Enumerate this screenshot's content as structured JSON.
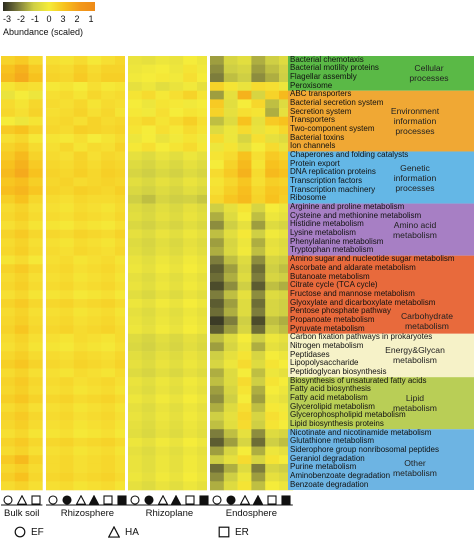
{
  "legend": {
    "ticks": [
      "-3",
      "-2",
      "-1",
      "0",
      "3",
      "2",
      "1"
    ],
    "title": "Abundance (scaled)",
    "colors": [
      "#2b2b20",
      "#7d7d3c",
      "#cfcf44",
      "#f5ec3a",
      "#f7c21e",
      "#f39a1a",
      "#ee8a18"
    ]
  },
  "row_labels": [
    "Bacterial chemotaxis",
    "Bacterial motility proteins",
    "Flagellar assembly",
    "Peroxisome",
    "ABC transporters",
    "Bacterial secretion system",
    "Secretion system",
    "Transporters",
    "Two-component system",
    "Bacterial toxins",
    "Ion channels",
    "Chaperones and folding catalysts",
    "Protein export",
    "DNA replication proteins",
    "Transcription factors",
    "Transcription machinery",
    "Ribosome",
    "Arginine and proline metabolism",
    "Cysteine and methionine metabolism",
    "Histidine metabolism",
    "Lysine metabolism",
    "Phenylalanine metabolism",
    "Tryptophan metabolism",
    "Amino sugar and nucleotide sugar metabolism",
    "Ascorbate and aldarate metabolism",
    "Butanoate metabolism",
    "Citrate cycle (TCA cycle)",
    "Fructose and mannose metabolism",
    "Glyoxylate and dicarboxylate metabolism",
    "Pentose phosphate pathway",
    "Propanoate metabolism",
    "Pyruvate metabolism",
    "Carbon fixation pathways in prokaryotes",
    "Nitrogen metabolism",
    "Peptidases",
    "Lipopolysaccharide",
    "Peptidoglycan biosynthesis",
    "Biosynthesis of unsaturated fatty acids",
    "Fatty acid biosynthesis",
    "Fatty acid metabolism",
    "Glycerolipid metabolism",
    "Glycerophospholipid metabolism",
    "Lipid biosynthesis proteins",
    "Nicotinate and nicotinamide metabolism",
    "Glutathione metabolism",
    "Siderophore group nonribosomal peptides",
    "Geraniol degradation",
    "Purine metabolism",
    "Aminobenzoate degradation",
    "Benzoate degradation"
  ],
  "categories": [
    {
      "lines": [
        "Cellular",
        "processes"
      ],
      "start": 0,
      "end": 4,
      "color": "#5ab946"
    },
    {
      "lines": [
        "Environment",
        "information",
        "processes"
      ],
      "start": 4,
      "end": 11,
      "color": "#f0a834"
    },
    {
      "lines": [
        "Genetic",
        "information",
        "processes"
      ],
      "start": 11,
      "end": 17,
      "color": "#64b7e6"
    },
    {
      "lines": [
        "Amino acid",
        "metabolism"
      ],
      "start": 17,
      "end": 23,
      "color": "#a77fc4"
    },
    {
      "lines": [
        "Carbohydrate",
        "metabolism"
      ],
      "start": 23,
      "end": 32,
      "color": "#e86a3c"
    },
    {
      "lines": [
        "Energy&Glycan",
        "metabolism"
      ],
      "start": 32,
      "end": 37,
      "color": "#f6f2c8"
    },
    {
      "lines": [
        "Lipid",
        "metabolism"
      ],
      "start": 37,
      "end": 43,
      "color": "#b9ce56"
    },
    {
      "lines": [
        "Other",
        "metabolism"
      ],
      "start": 43,
      "end": 50,
      "color": "#6db4e3"
    }
  ],
  "groups": [
    {
      "name": "Bulk soil",
      "symbols": [
        "circle-open",
        "triangle-open",
        "square-open"
      ]
    },
    {
      "name": "Rhizosphere",
      "symbols": [
        "circle-open",
        "circle-filled",
        "triangle-open",
        "triangle-filled",
        "square-open",
        "square-filled"
      ]
    },
    {
      "name": "Rhizoplane",
      "symbols": [
        "circle-open",
        "circle-filled",
        "triangle-open",
        "triangle-filled",
        "square-open",
        "square-filled"
      ]
    },
    {
      "name": "Endosphere",
      "symbols": [
        "circle-open",
        "circle-filled",
        "triangle-open",
        "triangle-filled",
        "square-open",
        "square-filled"
      ]
    }
  ],
  "key": [
    {
      "symbol": "circle-open",
      "label": "EF"
    },
    {
      "symbol": "triangle-open",
      "label": "HA"
    },
    {
      "symbol": "square-open",
      "label": "ER"
    }
  ],
  "chart_data": {
    "type": "heatmap",
    "title": "",
    "legend_title": "Abundance (scaled)",
    "columns_per_group": [
      3,
      6,
      6,
      6
    ],
    "column_groups": [
      "Bulk soil",
      "Rhizosphere",
      "Rhizoplane",
      "Endosphere"
    ],
    "column_key": {
      "circle": "EF",
      "triangle": "HA",
      "square": "ER"
    },
    "rows": [
      [
        0.6,
        0.8,
        0.4,
        0.3,
        0.2,
        0.4,
        0.1,
        0.3,
        0.5,
        -0.3,
        -0.4,
        -0.2,
        -0.3,
        0.0,
        -0.2,
        -1.6,
        -0.8,
        -0.5,
        -1.4,
        -1.0,
        -0.6
      ],
      [
        1.0,
        1.4,
        0.8,
        0.5,
        0.4,
        0.7,
        0.4,
        0.6,
        0.6,
        -0.2,
        -0.1,
        0.0,
        -0.2,
        0.2,
        -0.1,
        -1.8,
        -1.0,
        -0.8,
        -1.6,
        -1.2,
        -0.9
      ],
      [
        1.2,
        1.6,
        1.0,
        0.6,
        0.5,
        0.8,
        0.5,
        0.7,
        0.7,
        -0.1,
        0.0,
        0.1,
        -0.1,
        0.3,
        0.0,
        -2.0,
        -1.2,
        -1.0,
        -1.8,
        -1.4,
        -1.0
      ],
      [
        0.2,
        0.4,
        0.3,
        0.1,
        0.2,
        0.0,
        0.3,
        0.1,
        0.2,
        -0.4,
        -0.2,
        -0.5,
        -0.3,
        -0.1,
        -0.4,
        0.6,
        0.2,
        -0.3,
        0.4,
        0.3,
        -0.2
      ],
      [
        -0.3,
        0.0,
        -0.2,
        0.3,
        0.4,
        0.2,
        0.5,
        0.3,
        0.4,
        0.2,
        0.4,
        0.1,
        0.3,
        0.6,
        0.2,
        -1.6,
        -0.4,
        1.4,
        -0.8,
        0.6,
        1.2
      ],
      [
        0.4,
        0.2,
        0.5,
        0.4,
        0.3,
        0.5,
        0.2,
        0.4,
        0.3,
        0.0,
        -0.2,
        0.2,
        0.1,
        -0.1,
        0.0,
        0.8,
        -0.5,
        0.0,
        0.5,
        -1.2,
        -0.6
      ],
      [
        0.5,
        0.3,
        0.6,
        0.3,
        0.4,
        0.6,
        0.3,
        0.5,
        0.2,
        0.1,
        -0.1,
        0.3,
        0.0,
        0.2,
        0.1,
        0.6,
        -0.4,
        0.3,
        0.2,
        -1.4,
        -0.4
      ],
      [
        0.0,
        -0.2,
        0.2,
        0.4,
        0.5,
        0.3,
        0.6,
        0.4,
        0.5,
        0.3,
        0.5,
        0.2,
        0.4,
        0.7,
        0.3,
        -1.2,
        -0.6,
        1.0,
        -0.4,
        0.8,
        1.0
      ],
      [
        0.8,
        1.0,
        0.6,
        0.5,
        0.4,
        0.7,
        0.6,
        0.5,
        0.6,
        0.2,
        0.0,
        0.3,
        0.1,
        0.4,
        0.2,
        -0.6,
        -0.2,
        0.4,
        -0.3,
        0.2,
        0.5
      ],
      [
        0.3,
        0.5,
        0.1,
        0.2,
        0.1,
        0.3,
        0.0,
        0.2,
        0.4,
        -0.2,
        0.0,
        -0.3,
        -0.1,
        0.2,
        -0.1,
        0.4,
        -0.2,
        -0.8,
        0.3,
        -0.4,
        -0.6
      ],
      [
        0.6,
        0.8,
        0.4,
        0.3,
        0.5,
        0.2,
        0.4,
        0.3,
        0.6,
        0.1,
        0.3,
        0.0,
        0.2,
        0.4,
        0.1,
        -0.2,
        0.2,
        -0.4,
        0.0,
        0.4,
        -0.3
      ],
      [
        0.8,
        1.2,
        0.6,
        0.4,
        0.3,
        0.6,
        0.3,
        0.5,
        0.4,
        -0.4,
        -0.6,
        -0.3,
        -0.5,
        -0.2,
        -0.4,
        0.2,
        0.4,
        1.0,
        0.3,
        0.8,
        0.6
      ],
      [
        1.0,
        1.4,
        0.8,
        0.5,
        0.4,
        0.6,
        0.4,
        0.6,
        0.5,
        -0.6,
        -0.8,
        -0.5,
        -0.7,
        -0.4,
        -0.6,
        0.0,
        0.6,
        1.2,
        0.2,
        1.0,
        0.8
      ],
      [
        1.2,
        1.6,
        1.0,
        0.6,
        0.5,
        0.7,
        0.5,
        0.7,
        0.6,
        -0.8,
        -1.0,
        -0.7,
        -0.9,
        -0.6,
        -0.8,
        0.4,
        0.8,
        1.4,
        0.4,
        1.2,
        1.0
      ],
      [
        0.9,
        1.1,
        0.7,
        0.5,
        0.6,
        0.4,
        0.5,
        0.6,
        0.5,
        -0.5,
        -0.7,
        -0.4,
        -0.6,
        -0.3,
        -0.5,
        0.2,
        0.5,
        0.9,
        0.3,
        0.7,
        0.6
      ],
      [
        1.1,
        1.3,
        0.9,
        0.6,
        0.5,
        0.7,
        0.6,
        0.5,
        0.7,
        -0.7,
        -0.9,
        -0.6,
        -0.8,
        -0.5,
        -0.7,
        0.3,
        0.7,
        1.1,
        0.5,
        0.9,
        0.8
      ],
      [
        0.7,
        1.0,
        0.5,
        0.4,
        0.3,
        0.5,
        0.4,
        0.4,
        0.5,
        -1.0,
        -1.2,
        -0.8,
        -1.0,
        -0.9,
        -1.1,
        0.5,
        0.9,
        1.2,
        0.6,
        1.0,
        0.7
      ],
      [
        0.4,
        0.6,
        0.3,
        0.3,
        0.2,
        0.4,
        0.3,
        0.2,
        0.4,
        -0.6,
        -0.8,
        -0.5,
        -0.7,
        -0.4,
        -0.6,
        -1.0,
        -0.4,
        0.2,
        -0.8,
        0.0,
        -0.2
      ],
      [
        0.5,
        0.7,
        0.4,
        0.4,
        0.3,
        0.5,
        0.4,
        0.3,
        0.5,
        -0.5,
        -0.7,
        -0.4,
        -0.6,
        -0.3,
        -0.5,
        -1.4,
        -0.6,
        0.0,
        -1.2,
        -0.2,
        -0.4
      ],
      [
        0.3,
        0.5,
        0.2,
        0.2,
        0.1,
        0.3,
        0.2,
        0.1,
        0.3,
        -0.7,
        -0.9,
        -0.6,
        -0.8,
        -0.5,
        -0.7,
        -1.8,
        -1.0,
        -0.4,
        -1.6,
        -0.6,
        -0.8
      ],
      [
        0.6,
        0.8,
        0.5,
        0.5,
        0.4,
        0.6,
        0.5,
        0.4,
        0.6,
        -0.4,
        -0.6,
        -0.3,
        -0.5,
        -0.2,
        -0.4,
        -1.2,
        -0.5,
        0.1,
        -1.0,
        -0.1,
        -0.3
      ],
      [
        0.4,
        0.6,
        0.3,
        0.3,
        0.2,
        0.4,
        0.3,
        0.2,
        0.4,
        -0.6,
        -0.8,
        -0.5,
        -0.7,
        -0.4,
        -0.6,
        -1.6,
        -0.8,
        -0.2,
        -1.4,
        -0.4,
        -0.6
      ],
      [
        0.5,
        0.7,
        0.4,
        0.4,
        0.3,
        0.5,
        0.4,
        0.3,
        0.5,
        -0.5,
        -0.7,
        -0.4,
        -0.6,
        -0.3,
        -0.5,
        -1.4,
        -0.7,
        -0.1,
        -1.2,
        -0.3,
        -0.5
      ],
      [
        0.2,
        0.4,
        0.1,
        0.3,
        0.4,
        0.2,
        0.3,
        0.4,
        0.2,
        -0.3,
        -0.5,
        -0.2,
        -0.4,
        -0.1,
        -0.3,
        -2.0,
        -1.2,
        -0.6,
        -1.8,
        -0.8,
        -1.0
      ],
      [
        0.6,
        0.8,
        0.5,
        0.4,
        0.5,
        0.3,
        0.4,
        0.5,
        0.3,
        -0.2,
        -0.4,
        -0.1,
        -0.3,
        0.0,
        -0.2,
        -2.4,
        -1.6,
        -0.8,
        -2.2,
        -1.0,
        -1.2
      ],
      [
        0.4,
        0.6,
        0.3,
        0.3,
        0.4,
        0.2,
        0.3,
        0.4,
        0.2,
        -0.4,
        -0.6,
        -0.3,
        -0.5,
        -0.2,
        -0.4,
        -2.2,
        -1.4,
        -0.6,
        -2.0,
        -0.8,
        -1.0
      ],
      [
        0.5,
        0.7,
        0.4,
        0.4,
        0.5,
        0.3,
        0.4,
        0.5,
        0.3,
        -0.3,
        -0.5,
        -0.2,
        -0.4,
        -0.1,
        -0.3,
        -2.6,
        -1.8,
        -1.0,
        -2.4,
        -1.2,
        -1.4
      ],
      [
        0.3,
        0.5,
        0.2,
        0.2,
        0.3,
        0.1,
        0.2,
        0.3,
        0.1,
        -0.5,
        -0.7,
        -0.4,
        -0.6,
        -0.3,
        -0.5,
        -2.0,
        -1.2,
        -0.4,
        -1.8,
        -0.6,
        -0.8
      ],
      [
        0.6,
        0.8,
        0.5,
        0.5,
        0.6,
        0.4,
        0.5,
        0.6,
        0.4,
        -0.2,
        -0.4,
        -0.1,
        -0.3,
        0.0,
        -0.2,
        -2.4,
        -1.6,
        -0.6,
        -2.2,
        -0.8,
        -1.0
      ],
      [
        0.4,
        0.6,
        0.3,
        0.3,
        0.4,
        0.2,
        0.3,
        0.4,
        0.2,
        -0.4,
        -0.6,
        -0.3,
        -0.5,
        -0.2,
        -0.4,
        -2.2,
        -1.4,
        -0.6,
        -2.0,
        -0.8,
        -1.0
      ],
      [
        0.5,
        0.7,
        0.4,
        0.4,
        0.5,
        0.3,
        0.4,
        0.5,
        0.3,
        -0.3,
        -0.5,
        -0.2,
        -0.4,
        -0.1,
        -0.3,
        -2.8,
        -2.0,
        -1.0,
        -2.6,
        -1.2,
        -1.4
      ],
      [
        0.6,
        0.9,
        0.5,
        0.5,
        0.6,
        0.4,
        0.5,
        0.6,
        0.4,
        -0.2,
        -0.4,
        -0.1,
        -0.3,
        0.0,
        -0.2,
        -2.4,
        -1.6,
        -0.8,
        -2.2,
        -1.0,
        -1.2
      ],
      [
        0.4,
        0.6,
        0.3,
        0.3,
        0.2,
        0.4,
        0.3,
        0.2,
        0.4,
        -0.6,
        -0.8,
        -0.5,
        -0.7,
        -0.4,
        -0.6,
        -1.2,
        -0.6,
        0.0,
        -1.0,
        -0.2,
        -0.4
      ],
      [
        0.3,
        0.5,
        0.2,
        0.2,
        0.1,
        0.3,
        0.2,
        0.1,
        0.3,
        -0.7,
        -0.9,
        -0.6,
        -0.8,
        -0.5,
        -0.7,
        -1.6,
        -0.8,
        -0.2,
        -1.4,
        -0.4,
        -0.6
      ],
      [
        0.5,
        0.7,
        0.4,
        0.4,
        0.3,
        0.5,
        0.4,
        0.3,
        0.5,
        -0.5,
        -0.7,
        -0.4,
        -0.6,
        -0.3,
        -0.5,
        -1.0,
        -0.4,
        0.2,
        -0.8,
        0.0,
        -0.2
      ],
      [
        0.7,
        0.9,
        0.6,
        0.5,
        0.4,
        0.6,
        0.5,
        0.4,
        0.6,
        -0.4,
        -0.6,
        -0.3,
        -0.5,
        -0.2,
        -0.4,
        -0.8,
        -0.2,
        0.4,
        -0.6,
        0.2,
        0.0
      ],
      [
        0.4,
        0.6,
        0.3,
        0.3,
        0.2,
        0.4,
        0.3,
        0.2,
        0.4,
        -0.6,
        -0.8,
        -0.5,
        -0.7,
        -0.4,
        -0.6,
        -1.4,
        -0.6,
        0.0,
        -1.2,
        -0.2,
        -0.4
      ],
      [
        0.6,
        0.8,
        0.5,
        0.4,
        0.5,
        0.3,
        0.4,
        0.5,
        0.3,
        -0.3,
        -0.5,
        -0.2,
        -0.4,
        -0.1,
        -0.3,
        -1.2,
        -0.6,
        0.4,
        -1.0,
        0.2,
        0.0
      ],
      [
        0.5,
        0.7,
        0.4,
        0.3,
        0.4,
        0.2,
        0.3,
        0.4,
        0.2,
        -0.4,
        -0.6,
        -0.3,
        -0.5,
        -0.2,
        -0.4,
        -1.6,
        -0.8,
        0.2,
        -1.4,
        0.0,
        -0.2
      ],
      [
        0.7,
        0.9,
        0.6,
        0.5,
        0.6,
        0.4,
        0.5,
        0.6,
        0.4,
        -0.2,
        -0.4,
        -0.1,
        -0.3,
        0.0,
        -0.2,
        -1.8,
        -1.0,
        0.0,
        -1.6,
        -0.2,
        -0.4
      ],
      [
        0.4,
        0.6,
        0.3,
        0.3,
        0.4,
        0.2,
        0.3,
        0.4,
        0.2,
        -0.4,
        -0.6,
        -0.3,
        -0.5,
        -0.2,
        -0.4,
        -1.4,
        -0.6,
        0.3,
        -1.2,
        0.1,
        -0.1
      ],
      [
        0.6,
        0.8,
        0.5,
        0.4,
        0.5,
        0.3,
        0.4,
        0.5,
        0.3,
        -0.3,
        -0.5,
        -0.2,
        -0.4,
        -0.1,
        -0.3,
        -1.0,
        -0.4,
        0.5,
        -0.8,
        0.3,
        0.1
      ],
      [
        0.5,
        0.7,
        0.4,
        0.3,
        0.4,
        0.2,
        0.3,
        0.4,
        0.2,
        -0.4,
        -0.6,
        -0.3,
        -0.5,
        -0.2,
        -0.4,
        -1.2,
        -0.5,
        0.4,
        -1.0,
        0.2,
        0.0
      ],
      [
        0.3,
        0.5,
        0.2,
        0.2,
        0.3,
        0.1,
        0.2,
        0.3,
        0.1,
        -0.5,
        -0.7,
        -0.4,
        -0.6,
        -0.3,
        -0.5,
        -2.0,
        -1.2,
        -0.4,
        -1.8,
        -0.6,
        -0.8
      ],
      [
        0.6,
        0.8,
        0.5,
        0.5,
        0.6,
        0.4,
        0.5,
        0.6,
        0.4,
        -0.2,
        -0.4,
        -0.1,
        -0.3,
        0.0,
        -0.2,
        -2.4,
        -1.6,
        -0.8,
        -2.2,
        -1.0,
        -1.2
      ],
      [
        0.4,
        0.6,
        0.3,
        0.3,
        0.4,
        0.2,
        0.3,
        0.4,
        0.2,
        -0.4,
        -0.6,
        -0.3,
        -0.5,
        -0.2,
        -0.4,
        -1.6,
        -0.8,
        0.0,
        -1.4,
        -0.2,
        -0.4
      ],
      [
        0.8,
        1.2,
        0.6,
        0.4,
        0.5,
        0.3,
        0.4,
        0.5,
        0.3,
        -0.3,
        -0.5,
        -0.2,
        -0.4,
        -0.1,
        -0.3,
        -1.0,
        -0.4,
        0.4,
        -0.8,
        0.2,
        0.0
      ],
      [
        0.5,
        0.7,
        0.4,
        0.4,
        0.5,
        0.3,
        0.4,
        0.5,
        0.3,
        -0.3,
        -0.5,
        -0.2,
        -0.4,
        -0.1,
        -0.3,
        -2.2,
        -1.4,
        -0.6,
        -2.0,
        -0.8,
        -1.0
      ],
      [
        0.7,
        1.0,
        0.5,
        0.5,
        0.6,
        0.4,
        0.5,
        0.6,
        0.4,
        -0.2,
        -0.4,
        -0.1,
        -0.3,
        0.0,
        -0.2,
        -1.8,
        -1.0,
        -0.2,
        -1.6,
        -0.4,
        -0.6
      ],
      [
        0.4,
        0.6,
        0.3,
        0.3,
        0.4,
        0.2,
        0.3,
        0.4,
        0.2,
        -0.4,
        -0.6,
        -0.3,
        -0.5,
        -0.2,
        -0.4,
        -1.4,
        -0.6,
        0.2,
        -1.2,
        0.0,
        -0.2
      ]
    ]
  }
}
